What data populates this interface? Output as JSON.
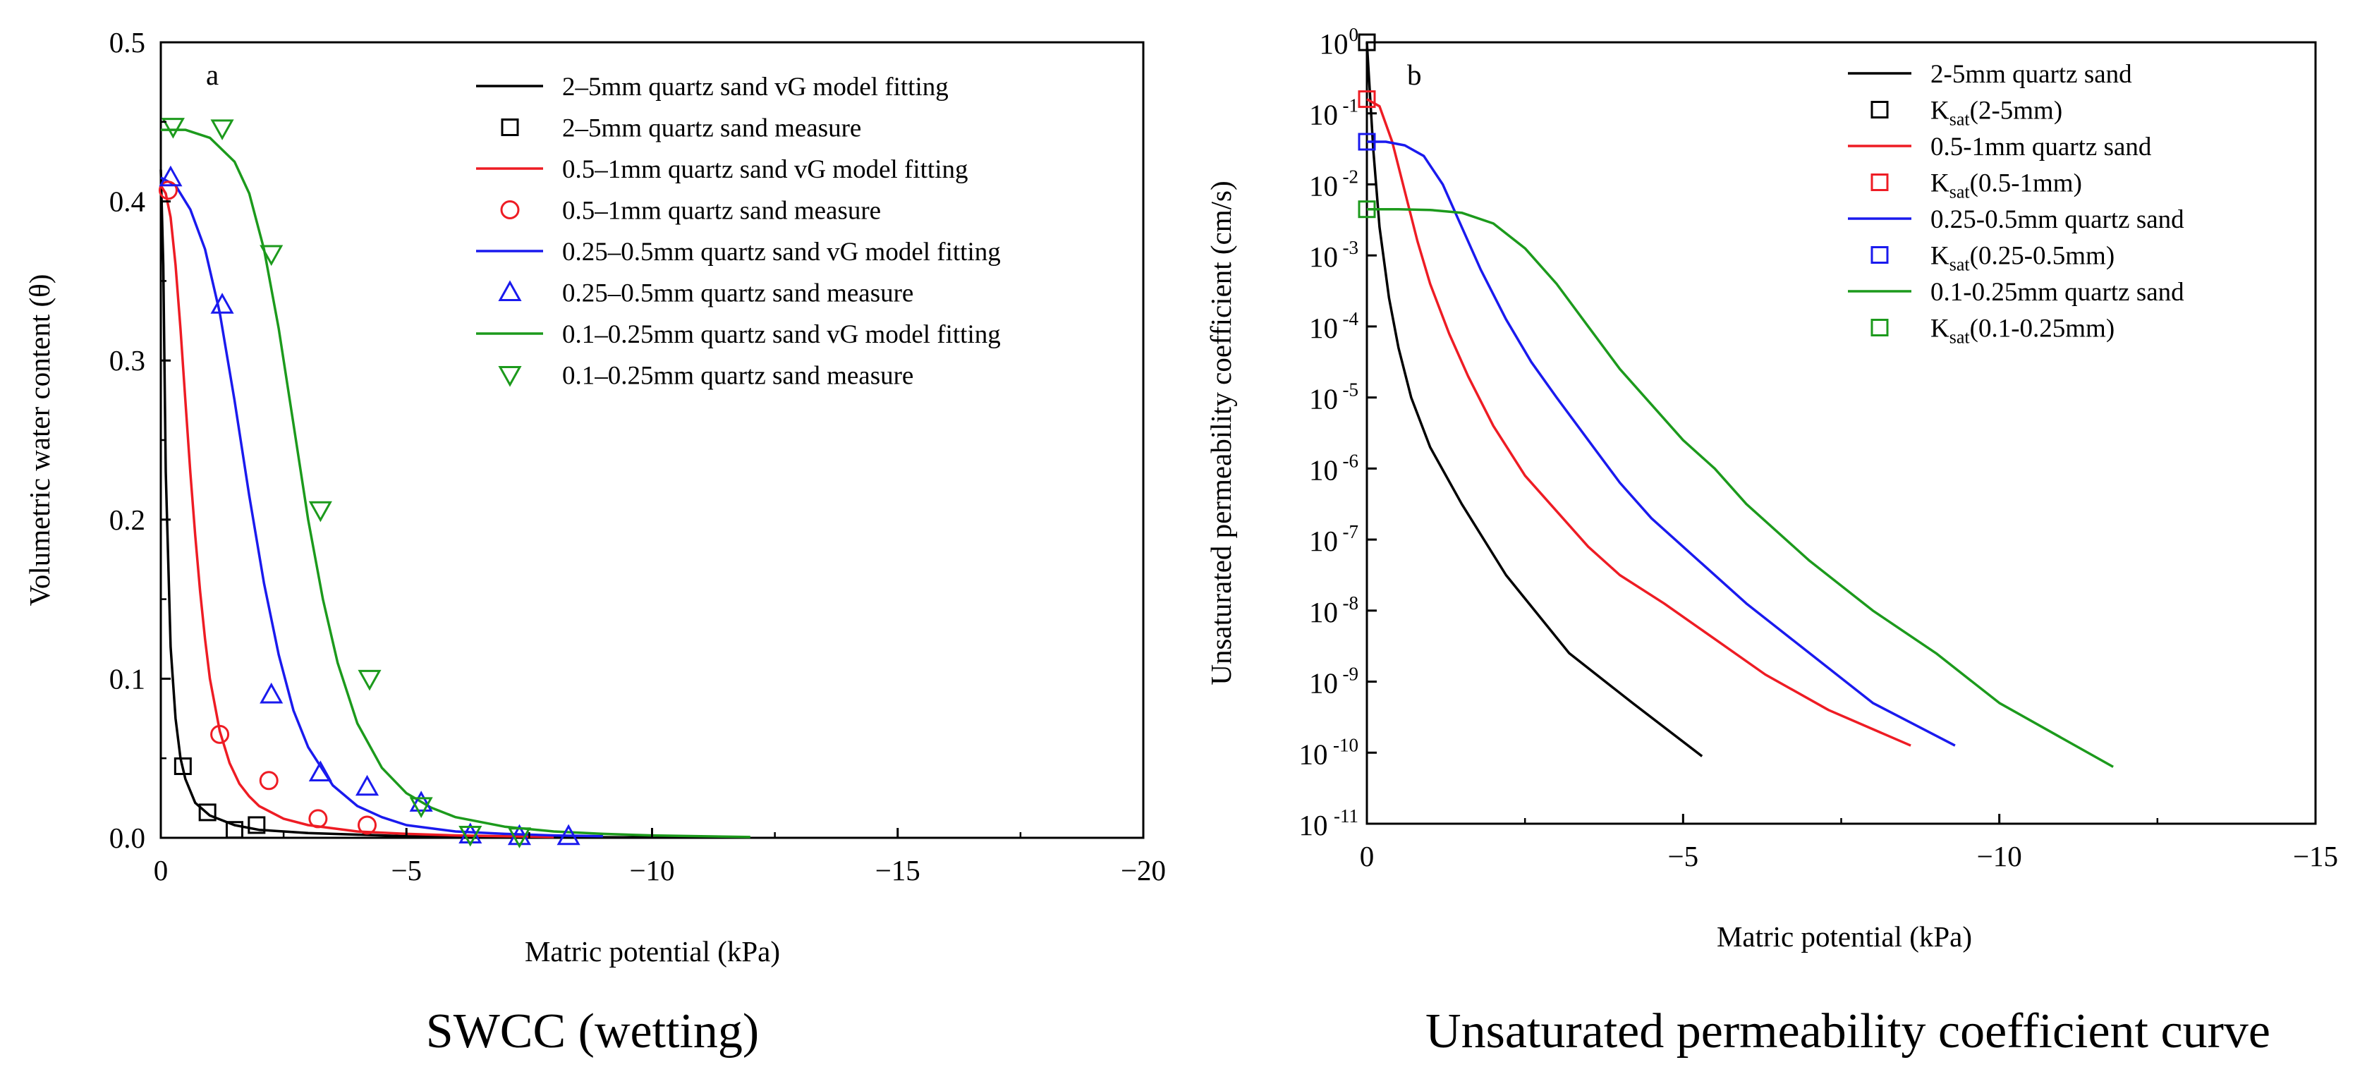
{
  "chart_data": [
    {
      "type": "line",
      "panel_label": "a",
      "caption": "SWCC (wetting)",
      "xlabel": "Matric potential (kPa)",
      "ylabel": "Volumetric water content (θ)",
      "xlim": [
        0,
        -20
      ],
      "ylim": [
        0,
        0.5
      ],
      "xticks": [
        0,
        -5,
        -10,
        -15,
        -20
      ],
      "xtick_labels": [
        "0",
        "−5",
        "−10",
        "−15",
        "−20"
      ],
      "yticks": [
        0,
        0.1,
        0.2,
        0.3,
        0.4,
        0.5
      ],
      "ytick_labels": [
        "0.0",
        "0.1",
        "0.2",
        "0.3",
        "0.4",
        "0.5"
      ],
      "legend_position": "top-right",
      "colors": {
        "black": "#000000",
        "red": "#ee1c24",
        "blue": "#1a1aee",
        "green": "#1c9a1c"
      },
      "series": [
        {
          "name": "2–5mm quartz sand vG model fitting",
          "kind": "line",
          "color": "#000000",
          "x": [
            0,
            -0.05,
            -0.1,
            -0.2,
            -0.3,
            -0.4,
            -0.5,
            -0.7,
            -1.0,
            -1.5,
            -2.0,
            -3.0,
            -4.0,
            -5.0,
            -7.0,
            -10.0
          ],
          "y": [
            0.42,
            0.36,
            0.23,
            0.12,
            0.075,
            0.05,
            0.037,
            0.022,
            0.014,
            0.008,
            0.005,
            0.003,
            0.002,
            0.001,
            0.0005,
            0.0003
          ]
        },
        {
          "name": "2–5mm quartz sand measure",
          "kind": "scatter",
          "marker": "square",
          "color": "#000000",
          "x": [
            -0.45,
            -0.95,
            -1.5,
            -1.95
          ],
          "y": [
            0.045,
            0.016,
            0.005,
            0.008
          ]
        },
        {
          "name": "0.5–1mm quartz sand vG model fitting",
          "kind": "line",
          "color": "#ee1c24",
          "x": [
            0,
            -0.1,
            -0.2,
            -0.3,
            -0.4,
            -0.5,
            -0.6,
            -0.7,
            -0.8,
            -0.9,
            -1.0,
            -1.2,
            -1.4,
            -1.6,
            -1.8,
            -2.0,
            -2.5,
            -3.0,
            -3.5,
            -4.0,
            -5.0,
            -6.0,
            -7.0,
            -8.0
          ],
          "y": [
            0.41,
            0.405,
            0.39,
            0.36,
            0.32,
            0.275,
            0.23,
            0.19,
            0.155,
            0.125,
            0.1,
            0.067,
            0.047,
            0.034,
            0.026,
            0.02,
            0.012,
            0.008,
            0.006,
            0.004,
            0.0025,
            0.0015,
            0.001,
            0.0005
          ]
        },
        {
          "name": "0.5–1mm quartz sand measure",
          "kind": "scatter",
          "marker": "circle",
          "color": "#ee1c24",
          "x": [
            -0.15,
            -1.2,
            -2.2,
            -3.2,
            -4.2
          ],
          "y": [
            0.407,
            0.065,
            0.036,
            0.012,
            0.008
          ]
        },
        {
          "name": "0.25–0.5mm quartz sand vG model fitting",
          "kind": "line",
          "color": "#1a1aee",
          "x": [
            0,
            -0.3,
            -0.6,
            -0.9,
            -1.2,
            -1.5,
            -1.8,
            -2.1,
            -2.4,
            -2.7,
            -3.0,
            -3.5,
            -4.0,
            -4.5,
            -5.0,
            -6.0,
            -7.0,
            -8.0,
            -9.0
          ],
          "y": [
            0.415,
            0.41,
            0.395,
            0.37,
            0.33,
            0.275,
            0.215,
            0.16,
            0.115,
            0.08,
            0.057,
            0.033,
            0.02,
            0.013,
            0.008,
            0.004,
            0.0025,
            0.0015,
            0.001
          ]
        },
        {
          "name": "0.25–0.5mm quartz sand measure",
          "kind": "scatter",
          "marker": "triangle-up",
          "color": "#1a1aee",
          "x": [
            -0.2,
            -1.25,
            -2.25,
            -3.25,
            -4.2,
            -5.3,
            -6.3,
            -7.3,
            -8.3
          ],
          "y": [
            0.415,
            0.335,
            0.09,
            0.041,
            0.032,
            0.022,
            0.002,
            0.001,
            0.001
          ]
        },
        {
          "name": "0.1–0.25mm quartz sand vG model fitting",
          "kind": "line",
          "color": "#1c9a1c",
          "x": [
            0,
            -0.5,
            -1.0,
            -1.5,
            -1.8,
            -2.1,
            -2.4,
            -2.7,
            -3.0,
            -3.3,
            -3.6,
            -4.0,
            -4.5,
            -5.0,
            -5.5,
            -6.0,
            -7.0,
            -8.0,
            -9.0,
            -10.0,
            -12.0
          ],
          "y": [
            0.445,
            0.445,
            0.44,
            0.425,
            0.405,
            0.37,
            0.32,
            0.26,
            0.2,
            0.15,
            0.11,
            0.072,
            0.044,
            0.028,
            0.019,
            0.013,
            0.007,
            0.004,
            0.0025,
            0.0015,
            0.0005
          ]
        },
        {
          "name": "0.1–0.25mm quartz sand measure",
          "kind": "scatter",
          "marker": "triangle-down",
          "color": "#1c9a1c",
          "x": [
            -0.25,
            -1.25,
            -2.25,
            -3.25,
            -4.25,
            -5.3,
            -6.3,
            -7.3
          ],
          "y": [
            0.447,
            0.446,
            0.367,
            0.206,
            0.1,
            0.02,
            0.002,
            0.001
          ]
        }
      ]
    },
    {
      "type": "line",
      "panel_label": "b",
      "caption": "Unsaturated permeability coefficient curve",
      "xlabel": "Matric potential (kPa)",
      "ylabel": "Unsaturated permeability coefficient (cm/s)",
      "yscale": "log",
      "xlim": [
        0,
        -15
      ],
      "ylim_exp": [
        -11,
        0
      ],
      "xticks": [
        0,
        -5,
        -10,
        -15
      ],
      "xtick_labels": [
        "0",
        "−5",
        "−10",
        "−15"
      ],
      "ytick_base": "10",
      "ytick_exponents": [
        "-11",
        "-10",
        "-9",
        "-8",
        "-7",
        "-6",
        "-5",
        "-4",
        "-3",
        "-2",
        "-1",
        "0"
      ],
      "legend_position": "top-right",
      "series": [
        {
          "name": "2-5mm quartz sand",
          "kind": "line",
          "color": "#000000",
          "x": [
            0,
            -0.1,
            -0.2,
            -0.35,
            -0.5,
            -0.7,
            -1.0,
            -1.5,
            -2.2,
            -3.2,
            -4.2,
            -5.3
          ],
          "log10_y": [
            0,
            -1.5,
            -2.6,
            -3.6,
            -4.3,
            -5.0,
            -5.7,
            -6.5,
            -7.5,
            -8.6,
            -9.3,
            -10.05
          ]
        },
        {
          "name": "K",
          "subscript": "sat",
          "paren": "(2-5mm)",
          "kind": "scatter",
          "marker": "square",
          "color": "#000000",
          "x": [
            0
          ],
          "log10_y": [
            0
          ]
        },
        {
          "name": "0.5-1mm quartz sand",
          "kind": "line",
          "color": "#ee1c24",
          "x": [
            0,
            -0.2,
            -0.4,
            -0.6,
            -0.8,
            -1.0,
            -1.3,
            -1.6,
            -2.0,
            -2.5,
            -3.0,
            -3.5,
            -4.0,
            -4.7,
            -5.5,
            -6.3,
            -7.3,
            -8.6
          ],
          "log10_y": [
            -0.8,
            -0.9,
            -1.4,
            -2.1,
            -2.8,
            -3.4,
            -4.1,
            -4.7,
            -5.4,
            -6.1,
            -6.6,
            -7.1,
            -7.5,
            -7.9,
            -8.4,
            -8.9,
            -9.4,
            -9.9
          ]
        },
        {
          "name": "K",
          "subscript": "sat",
          "paren": "(0.5-1mm)",
          "kind": "scatter",
          "marker": "square",
          "color": "#ee1c24",
          "x": [
            0
          ],
          "log10_y": [
            -0.8
          ]
        },
        {
          "name": "0.25-0.5mm quartz sand",
          "kind": "line",
          "color": "#1a1aee",
          "x": [
            0,
            -0.3,
            -0.6,
            -0.9,
            -1.2,
            -1.5,
            -1.8,
            -2.2,
            -2.6,
            -3.0,
            -3.5,
            -4.0,
            -4.5,
            -5.0,
            -6.0,
            -7.0,
            -8.0,
            -9.3
          ],
          "log10_y": [
            -1.4,
            -1.4,
            -1.45,
            -1.6,
            -2.0,
            -2.6,
            -3.2,
            -3.9,
            -4.5,
            -5.0,
            -5.6,
            -6.2,
            -6.7,
            -7.1,
            -7.9,
            -8.6,
            -9.3,
            -9.9
          ]
        },
        {
          "name": "K",
          "subscript": "sat",
          "paren": "(0.25-0.5mm)",
          "kind": "scatter",
          "marker": "square",
          "color": "#1a1aee",
          "x": [
            0
          ],
          "log10_y": [
            -1.4
          ]
        },
        {
          "name": "0.1-0.25mm quartz sand",
          "kind": "line",
          "color": "#1c9a1c",
          "x": [
            0,
            -0.5,
            -1.0,
            -1.5,
            -2.0,
            -2.5,
            -3.0,
            -3.5,
            -4.0,
            -4.5,
            -5.0,
            -5.5,
            -6.0,
            -7.0,
            -8.0,
            -9.0,
            -10.0,
            -11.0,
            -11.8
          ],
          "log10_y": [
            -2.35,
            -2.35,
            -2.36,
            -2.4,
            -2.55,
            -2.9,
            -3.4,
            -4.0,
            -4.6,
            -5.1,
            -5.6,
            -6.0,
            -6.5,
            -7.3,
            -8.0,
            -8.6,
            -9.3,
            -9.8,
            -10.2
          ]
        },
        {
          "name": "K",
          "subscript": "sat",
          "paren": "(0.1-0.25mm)",
          "kind": "scatter",
          "marker": "square",
          "color": "#1c9a1c",
          "x": [
            0
          ],
          "log10_y": [
            -2.35
          ]
        }
      ]
    }
  ]
}
